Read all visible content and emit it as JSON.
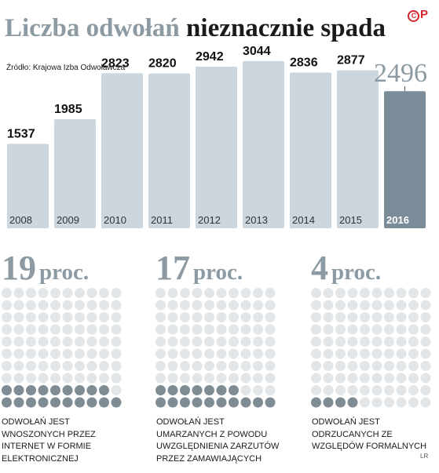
{
  "header": {
    "title_part1": "Liczba odwołań",
    "title_part2": "nieznacznie spada",
    "source": "Źródło: Krajowa Izba Odwoławcza",
    "logo_text": "P"
  },
  "colors": {
    "bar": "#ccd6dc",
    "highlight_bar": "#7a8c97",
    "muted": "#8c9aa3",
    "dot_light": "#e3e6e8",
    "dot_dark": "#7f8c94"
  },
  "chart_data": {
    "type": "bar",
    "categories": [
      "2008",
      "2009",
      "2010",
      "2011",
      "2012",
      "2013",
      "2014",
      "2015",
      "2016"
    ],
    "values": [
      1537,
      1985,
      2823,
      2820,
      2942,
      3044,
      2836,
      2877,
      2496
    ],
    "title": "Liczba odwołań nieznacznie spada",
    "highlight": "2016",
    "ylim": [
      0,
      3300
    ],
    "grid": false
  },
  "stats": [
    {
      "value": "19",
      "unit": "proc.",
      "dots_filled": 19,
      "description": "odwołań jest wnoszonych przez internet w formie elektronicznej"
    },
    {
      "value": "17",
      "unit": "proc.",
      "dots_filled": 17,
      "description": "odwołań jest umarzanych z powodu uwzględnienia zarzutów przez zamawiających"
    },
    {
      "value": "4",
      "unit": "proc.",
      "dots_filled": 4,
      "description": "odwołań jest odrzucanych ze względów formalnych"
    }
  ],
  "credit": "LR"
}
